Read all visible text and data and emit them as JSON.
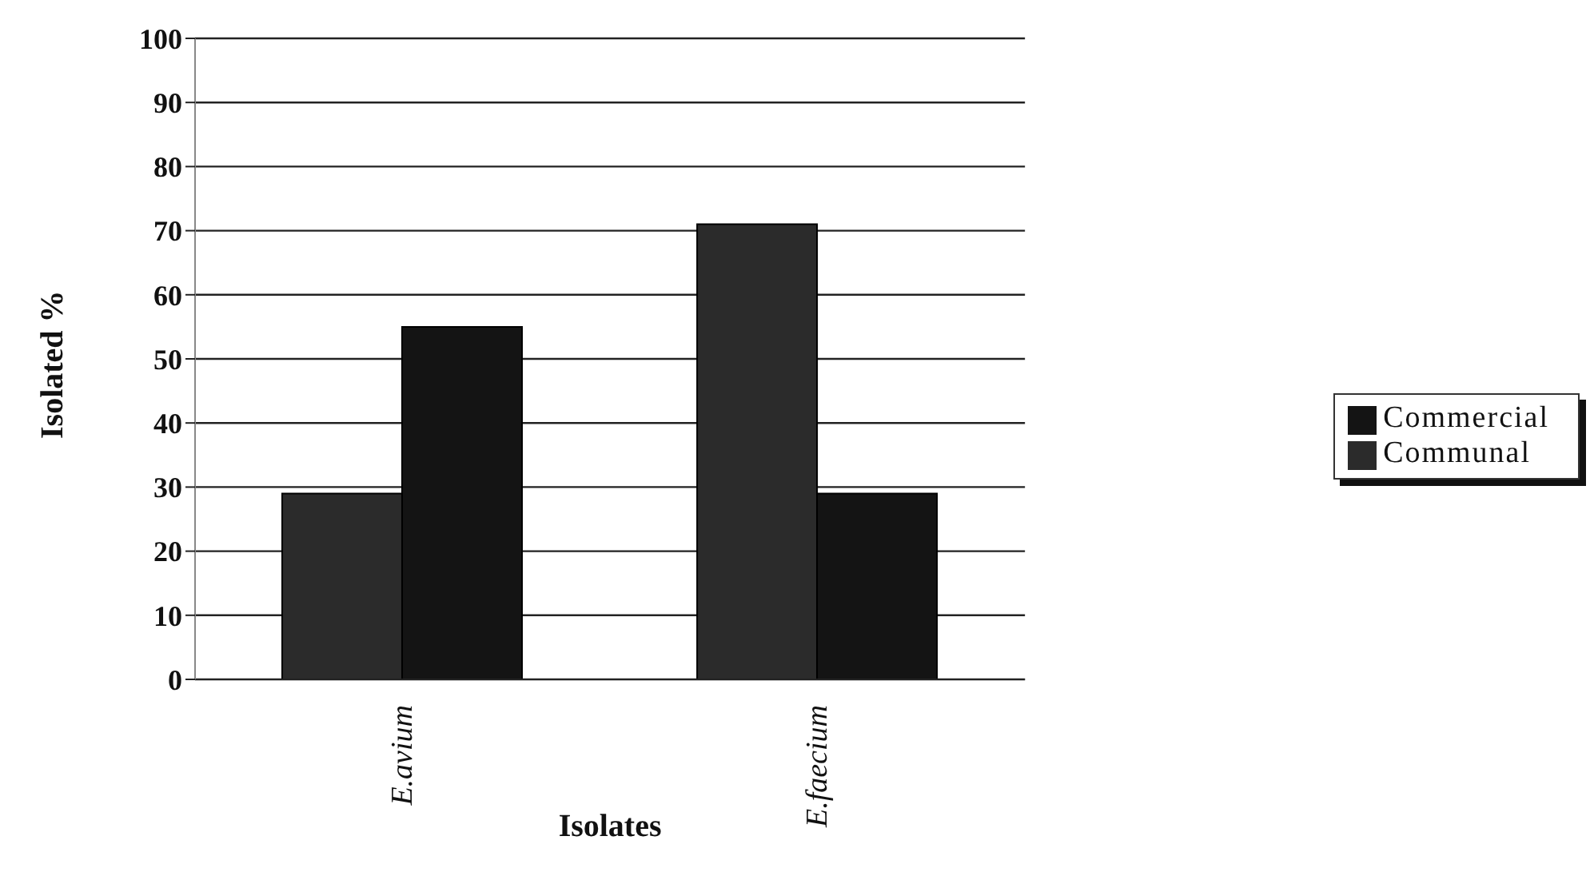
{
  "chart_data": {
    "type": "bar",
    "xlabel": "Isolates",
    "ylabel": "Isolated %",
    "categories": [
      "E.avium",
      "E.faecium"
    ],
    "series": [
      {
        "name": "Communal",
        "color": "#2b2b2b",
        "values": [
          29,
          71
        ]
      },
      {
        "name": "Commercial",
        "color": "#141414",
        "values": [
          55,
          29
        ]
      }
    ],
    "ylim": [
      0,
      100
    ],
    "yticks": [
      0,
      10,
      20,
      30,
      40,
      50,
      60,
      70,
      80,
      90,
      100
    ],
    "grid": "y",
    "legend": "right"
  }
}
